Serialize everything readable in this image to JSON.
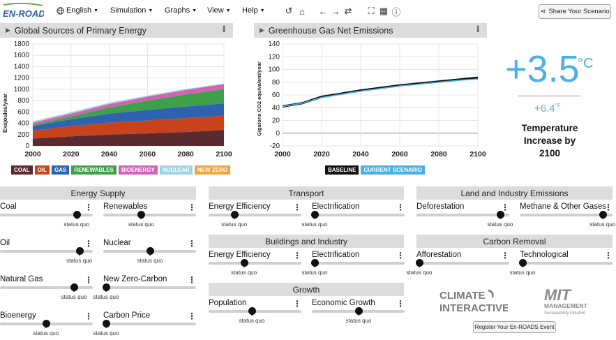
{
  "app": {
    "logo_text": "EN-ROADS"
  },
  "menu": {
    "language": "English",
    "simulation": "Simulation",
    "graphs": "Graphs",
    "view": "View",
    "help": "Help"
  },
  "toolbar_icons": [
    "undo-icon",
    "home-icon",
    "back-arrow-icon",
    "forward-arrow-icon",
    "refresh-icon",
    "fullscreen-icon",
    "table-icon",
    "info-icon"
  ],
  "share_label": "Share Your Scenario",
  "left_graph": {
    "title": "Global Sources of Primary Energy",
    "ylabel": "Exajoules/year",
    "legend": [
      {
        "label": "COAL",
        "color": "#5b2a2f"
      },
      {
        "label": "OIL",
        "color": "#c8431b"
      },
      {
        "label": "GAS",
        "color": "#2e62b0"
      },
      {
        "label": "RENEWABLES",
        "color": "#3fa04a"
      },
      {
        "label": "BIOENERGY",
        "color": "#d163b5"
      },
      {
        "label": "NUCLEAR",
        "color": "#9ed4de"
      },
      {
        "label": "NEW ZERO",
        "color": "#f2a33a"
      }
    ]
  },
  "right_graph": {
    "title": "Greenhouse Gas Net Emissions",
    "ylabel": "Gigatons CO2 equivalent/year",
    "legend": [
      {
        "label": "BASELINE",
        "color": "#111111"
      },
      {
        "label": "CURRENT SCENARIO",
        "color": "#4ab0e6"
      }
    ]
  },
  "chart_data": [
    {
      "type": "area",
      "title": "Global Sources of Primary Energy",
      "ylabel": "Exajoules/year",
      "xlim": [
        2000,
        2100
      ],
      "ylim": [
        0,
        1800
      ],
      "xticks": [
        2000,
        2020,
        2040,
        2060,
        2080,
        2100
      ],
      "yticks": [
        0,
        200,
        400,
        600,
        800,
        1000,
        1200,
        1400,
        1600,
        1800
      ],
      "x": [
        2000,
        2020,
        2040,
        2060,
        2080,
        2100
      ],
      "series": [
        {
          "name": "COAL",
          "values": [
            130,
            170,
            200,
            220,
            245,
            280
          ]
        },
        {
          "name": "OIL",
          "values": [
            140,
            180,
            210,
            230,
            245,
            255
          ]
        },
        {
          "name": "GAS",
          "values": [
            80,
            120,
            160,
            185,
            205,
            215
          ]
        },
        {
          "name": "RENEWABLES",
          "values": [
            20,
            50,
            110,
            165,
            215,
            250
          ]
        },
        {
          "name": "BIOENERGY",
          "values": [
            40,
            50,
            60,
            70,
            80,
            90
          ]
        },
        {
          "name": "NUCLEAR",
          "values": [
            25,
            25,
            22,
            18,
            15,
            12
          ]
        },
        {
          "name": "NEW ZERO",
          "values": [
            0,
            0,
            0,
            0,
            0,
            0
          ]
        }
      ]
    },
    {
      "type": "line",
      "title": "Greenhouse Gas Net Emissions",
      "ylabel": "Gigatons CO2 equivalent/year",
      "xlim": [
        2000,
        2100
      ],
      "ylim": [
        -20,
        140
      ],
      "xticks": [
        2000,
        2020,
        2040,
        2060,
        2080,
        2100
      ],
      "yticks": [
        -20,
        0,
        20,
        40,
        60,
        80,
        100,
        120,
        140
      ],
      "x": [
        2000,
        2010,
        2020,
        2030,
        2040,
        2050,
        2060,
        2070,
        2080,
        2090,
        2100
      ],
      "series": [
        {
          "name": "BASELINE",
          "values": [
            42,
            47,
            57,
            62,
            67,
            71,
            75,
            78,
            81,
            84,
            87
          ]
        },
        {
          "name": "CURRENT SCENARIO",
          "values": [
            42,
            47,
            56,
            61,
            66,
            70,
            74,
            77,
            80,
            83,
            85
          ]
        }
      ]
    }
  ],
  "temperature": {
    "value": "+3.5",
    "unit": "°C",
    "fahrenheit": "+6.4",
    "f_unit": "°F",
    "caption_lines": [
      "Temperature",
      "Increase by",
      "2100"
    ]
  },
  "status_quo_label": "status quo",
  "sections": [
    {
      "title": "Energy Supply"
    },
    {
      "title": "Transport"
    },
    {
      "title": "Buildings and Industry"
    },
    {
      "title": "Growth"
    },
    {
      "title": "Land and Industry Emissions"
    },
    {
      "title": "Carbon Removal"
    }
  ],
  "sliders": [
    {
      "label": "Coal",
      "value": 0.84
    },
    {
      "label": "Renewables",
      "value": 0.4
    },
    {
      "label": "Oil",
      "value": 0.87
    },
    {
      "label": "Nuclear",
      "value": 0.5
    },
    {
      "label": "Natural Gas",
      "value": 0.81
    },
    {
      "label": "New Zero-Carbon",
      "value": 0.0
    },
    {
      "label": "Bioenergy",
      "value": 0.49
    },
    {
      "label": "Carbon Price",
      "value": 0.0
    },
    {
      "label": "Energy Efficiency",
      "value": 0.26
    },
    {
      "label": "Electrification",
      "value": 0.0
    },
    {
      "label": "Energy Efficiency",
      "value": 0.37
    },
    {
      "label": "Electrification",
      "value": 0.0
    },
    {
      "label": "Population",
      "value": 0.46
    },
    {
      "label": "Economic Growth",
      "value": 0.5
    },
    {
      "label": "Deforestation",
      "value": 0.92
    },
    {
      "label": "Methane & Other Gases",
      "value": 0.91
    },
    {
      "label": "Afforestation",
      "value": 0.0
    },
    {
      "label": "Technological",
      "value": 0.0
    }
  ],
  "logos": {
    "climate_interactive": [
      "CLIMATE",
      "INTERACTIVE"
    ],
    "mit": [
      "MIT",
      "MANAGEMENT",
      "Sustainability Initiative"
    ]
  },
  "register_label": "Register Your En-ROADS Event"
}
